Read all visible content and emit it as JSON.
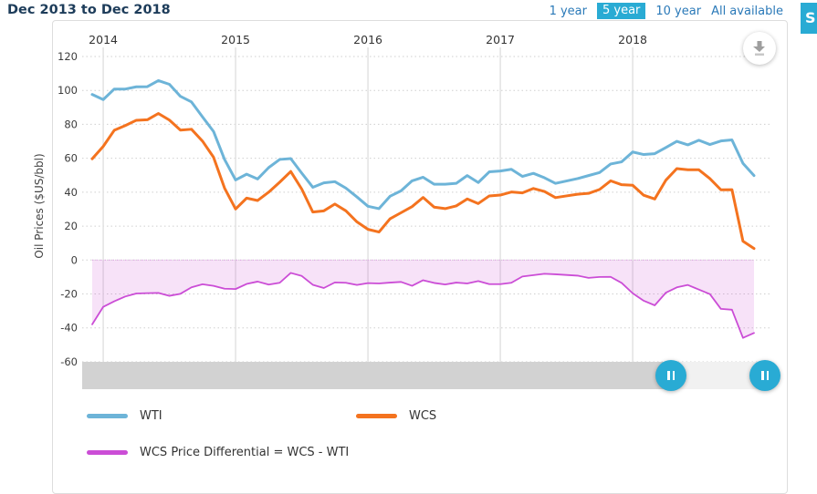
{
  "header": {
    "title": "Dec 2013 to Dec 2018",
    "ranges": [
      {
        "label": "1 year",
        "selected": false
      },
      {
        "label": "5 year",
        "selected": true
      },
      {
        "label": "10 year",
        "selected": false
      },
      {
        "label": "All available",
        "selected": false
      }
    ]
  },
  "side_tab": {
    "glyph": "S"
  },
  "colors": {
    "accent_cyan": "#29abd4",
    "link_blue": "#2a79b8",
    "title_navy": "#1d3c5a",
    "wti_blue": "#6db4d8",
    "wcs_orange": "#f4731f",
    "diff_magenta": "#cb4dd6",
    "diff_fill": "rgba(203,77,214,0.16)"
  },
  "legend": [
    {
      "id": "wti",
      "label": "WTI",
      "color": "#6db4d8"
    },
    {
      "id": "wcs",
      "label": "WCS",
      "color": "#f4731f"
    },
    {
      "id": "diff",
      "label": "WCS Price Differential = WCS - WTI",
      "color": "#cb4dd6"
    }
  ],
  "chart_data": {
    "type": "line",
    "title": "Dec 2013 to Dec 2018",
    "ylabel": "Oil Prices ($US/bbl)",
    "xlabel": "",
    "ylim": [
      -60,
      120
    ],
    "y_ticks": [
      120,
      100,
      80,
      60,
      40,
      20,
      0,
      -20,
      -40,
      -60
    ],
    "x_start": "Dec 2013",
    "x_end": "Dec 2018",
    "x_frequency": "monthly",
    "year_labels": [
      "2014",
      "2015",
      "2016",
      "2017",
      "2018"
    ],
    "grid": "dotted-horizontal, solid-vertical-at-years",
    "legend_position": "bottom",
    "series": [
      {
        "name": "WTI",
        "color": "#6db4d8",
        "style": "line",
        "values": [
          97.6,
          94.6,
          100.8,
          100.8,
          102.1,
          102.2,
          105.8,
          103.6,
          96.5,
          93.2,
          84.4,
          75.8,
          59.3,
          47.2,
          50.6,
          47.8,
          54.5,
          59.3,
          59.8,
          51.2,
          42.9,
          45.5,
          46.2,
          42.4,
          37.2,
          31.7,
          30.3,
          37.6,
          40.8,
          46.7,
          48.8,
          44.7,
          44.7,
          45.2,
          49.8,
          45.7,
          52.0,
          52.5,
          53.5,
          49.3,
          51.1,
          48.5,
          45.2,
          46.6,
          48.0,
          49.8,
          51.6,
          56.6,
          57.9,
          63.7,
          62.2,
          62.7,
          66.3,
          70.0,
          67.9,
          70.6,
          68.1,
          70.2,
          70.8,
          57.0,
          49.8
        ]
      },
      {
        "name": "WCS",
        "color": "#f4731f",
        "style": "line",
        "values": [
          59.7,
          67.0,
          76.5,
          79.3,
          82.4,
          82.7,
          86.4,
          82.5,
          76.6,
          77.1,
          70.1,
          60.6,
          42.4,
          30.1,
          36.5,
          35.1,
          40.0,
          45.9,
          52.2,
          41.8,
          28.3,
          29.0,
          33.0,
          29.0,
          22.5,
          18.1,
          16.5,
          24.3,
          27.9,
          31.5,
          36.9,
          31.2,
          30.3,
          31.9,
          36.0,
          33.3,
          37.8,
          38.3,
          40.1,
          39.6,
          42.2,
          40.4,
          36.8,
          37.8,
          38.8,
          39.3,
          41.6,
          46.7,
          44.4,
          44.1,
          38.2,
          36.0,
          47.0,
          53.9,
          53.2,
          53.2,
          48.0,
          41.4,
          41.5,
          11.1,
          6.8
        ]
      },
      {
        "name": "WCS Price Differential = WCS - WTI",
        "color": "#cb4dd6",
        "style": "area",
        "values": [
          -37.9,
          -27.6,
          -24.3,
          -21.5,
          -19.7,
          -19.5,
          -19.4,
          -21.1,
          -19.9,
          -16.1,
          -14.3,
          -15.2,
          -16.9,
          -17.1,
          -14.1,
          -12.7,
          -14.5,
          -13.4,
          -7.6,
          -9.4,
          -14.6,
          -16.5,
          -13.2,
          -13.4,
          -14.7,
          -13.6,
          -13.8,
          -13.3,
          -12.9,
          -15.2,
          -11.9,
          -13.5,
          -14.4,
          -13.3,
          -13.8,
          -12.4,
          -14.2,
          -14.2,
          -13.4,
          -9.7,
          -8.9,
          -8.1,
          -8.4,
          -8.8,
          -9.2,
          -10.5,
          -10.0,
          -9.9,
          -13.5,
          -19.6,
          -24.0,
          -26.7,
          -19.3,
          -16.1,
          -14.7,
          -17.4,
          -20.1,
          -28.8,
          -29.3,
          -45.9,
          -43.0
        ]
      }
    ]
  }
}
